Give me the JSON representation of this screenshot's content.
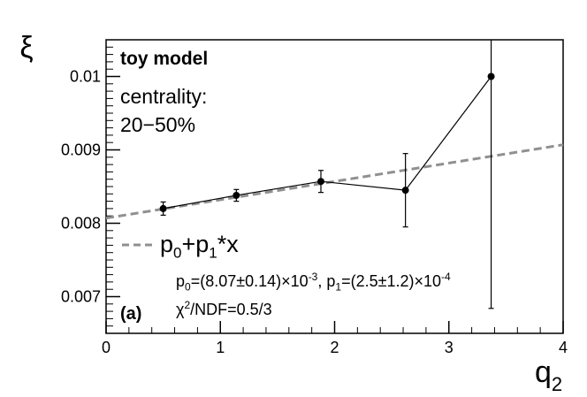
{
  "chart_data": {
    "type": "scatter",
    "ylabel": "ξ",
    "xlabel": "q",
    "xlabel_sub": "2",
    "xlim": [
      0,
      4
    ],
    "ylim": [
      0.0065,
      0.0105
    ],
    "xticks": [
      0,
      1,
      2,
      3,
      4
    ],
    "xtick_labels": [
      "0",
      "1",
      "2",
      "3",
      "4"
    ],
    "yticks": [
      0.007,
      0.008,
      0.009,
      0.01
    ],
    "ytick_labels": [
      "0.007",
      "0.008",
      "0.009",
      "0.01"
    ],
    "grid": false,
    "series": [
      {
        "x": [
          0.5,
          1.14,
          1.88,
          2.62,
          3.37
        ],
        "y": [
          0.0082,
          0.00838,
          0.00857,
          0.00845,
          0.01
        ],
        "yerr": [
          9e-05,
          8e-05,
          0.00015,
          0.0005,
          0.00316
        ],
        "line": true,
        "color": "#000000"
      },
      {
        "name": "p0+p1*x",
        "fit": {
          "p0": 0.00807,
          "p1": 0.00025
        },
        "style": "dashed",
        "color": "#909090"
      }
    ],
    "legend_placement": "lower-left"
  },
  "annotations": {
    "model": "toy model",
    "centrality_label": "centrality:",
    "centrality_value": "20−50%",
    "legend_entry": {
      "p": "p",
      "sub0": "0",
      "plus": "+p",
      "sub1": "1",
      "times_x": "*x"
    },
    "fit_params": {
      "p0_a": "p",
      "p0_sub": "0",
      "p0_b": "=(8.07±0.14)×10",
      "p0_exp": "-3",
      "p1_a": ", p",
      "p1_sub": "1",
      "p1_b": "=(2.5±1.2)×10",
      "p1_exp": "-4"
    },
    "chi2": {
      "chi": "χ",
      "sup": "2",
      "rest": "/NDF=0.5/3"
    },
    "panel": "(a)"
  }
}
